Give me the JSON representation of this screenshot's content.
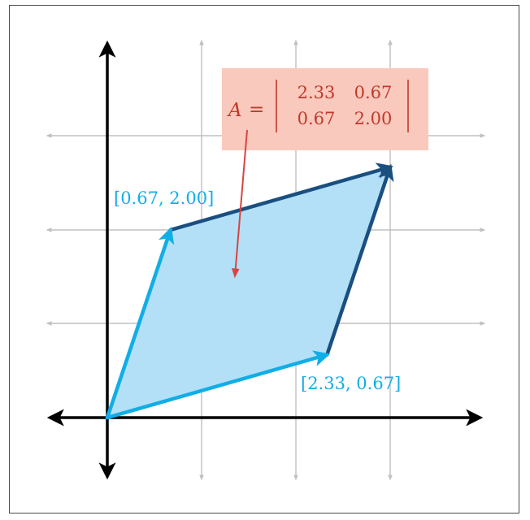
{
  "colors": {
    "grid": "#c0c0c0",
    "axis": "#000000",
    "vector_light": "#10aee6",
    "vector_dark": "#1a4f80",
    "fill": "#b3e0f7",
    "label": "#10aee6",
    "matrix_box": "#fac9bd",
    "matrix_text": "#c0392b",
    "pointer": "#d64541"
  },
  "matrix": {
    "name": "A",
    "equals": "=",
    "rows": [
      [
        "2.33",
        "0.67"
      ],
      [
        "0.67",
        "2.00"
      ]
    ]
  },
  "vectors": {
    "v1": {
      "x": 2.33,
      "y": 0.67,
      "label": "[2.33, 0.67]"
    },
    "v2": {
      "x": 0.67,
      "y": 2.0,
      "label": "[0.67, 2.00]"
    }
  }
}
